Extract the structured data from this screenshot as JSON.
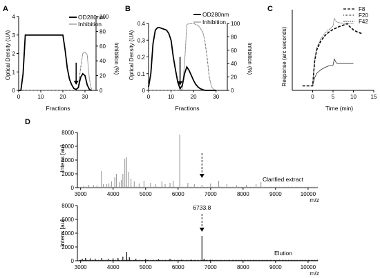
{
  "panels": {
    "A": {
      "label": "A"
    },
    "B": {
      "label": "B"
    },
    "C": {
      "label": "C"
    },
    "D": {
      "label": "D"
    }
  },
  "chart_data": [
    {
      "id": "A",
      "type": "line",
      "xlabel": "Fractions",
      "ylabel": "Optical Density (UA)",
      "y2label": "Inhibition (%)",
      "xlim": [
        0,
        35
      ],
      "ylim": [
        0,
        4
      ],
      "y2lim": [
        0,
        100
      ],
      "xticks": [
        0,
        10,
        20,
        30
      ],
      "yticks": [
        0,
        1,
        2,
        3,
        4
      ],
      "y2ticks": [
        0,
        20,
        40,
        60,
        80,
        100
      ],
      "legend": [
        "OD280nm",
        "Inhibition"
      ],
      "legend_position": "top-right",
      "series": [
        {
          "name": "OD280nm",
          "axis": "left",
          "x": [
            0,
            1,
            2,
            3,
            4,
            10,
            15,
            20,
            21,
            22,
            23,
            24,
            25,
            26,
            27,
            28,
            29,
            30,
            31,
            32,
            33
          ],
          "y": [
            0,
            0,
            0.9,
            3,
            3,
            3,
            3,
            3,
            2.2,
            1.2,
            0.6,
            0.3,
            0.1,
            0.05,
            0.15,
            0.7,
            0.9,
            0.8,
            0.3,
            0.05,
            0
          ]
        },
        {
          "name": "Inhibition",
          "axis": "right",
          "x": [
            0,
            26,
            27,
            28,
            29,
            30,
            31,
            32,
            33
          ],
          "y": [
            0,
            0,
            5,
            30,
            50,
            52,
            48,
            15,
            0
          ]
        }
      ],
      "annotations": [
        {
          "type": "arrow",
          "x": 26,
          "y_from": 1.5,
          "y_to": 0.3
        }
      ]
    },
    {
      "id": "B",
      "type": "line",
      "xlabel": "Fractions",
      "ylabel": "Optical Density (UA)",
      "y2label": "Inhibition (%)",
      "xlim": [
        0,
        35
      ],
      "ylim": [
        0,
        0.4
      ],
      "y2lim": [
        0,
        100
      ],
      "xticks": [
        0,
        10,
        20,
        30
      ],
      "yticks": [
        0,
        0.1,
        0.2,
        0.3,
        0.4
      ],
      "ytick_labels": [
        "0",
        "0.1",
        "0.2",
        "0.3",
        "0.4"
      ],
      "y2ticks": [
        0,
        20,
        40,
        60,
        80,
        100
      ],
      "legend": [
        "OD280nm",
        "Inhibition"
      ],
      "legend_position": "top-right",
      "series": [
        {
          "name": "OD280nm",
          "axis": "left",
          "x": [
            0,
            1,
            2,
            3,
            4,
            5,
            6,
            7,
            8,
            9,
            10,
            11,
            12,
            13,
            14,
            15,
            16,
            17,
            18,
            19,
            20,
            21,
            22,
            23,
            24,
            25,
            26,
            27,
            28,
            29,
            30
          ],
          "y": [
            0.02,
            0.1,
            0.28,
            0.36,
            0.375,
            0.375,
            0.37,
            0.365,
            0.36,
            0.34,
            0.3,
            0.2,
            0.12,
            0.05,
            0.01,
            0.03,
            0.1,
            0.14,
            0.12,
            0.09,
            0.06,
            0.035,
            0.02,
            0.01,
            0.005,
            0,
            0,
            0,
            0,
            0,
            0
          ]
        },
        {
          "name": "Inhibition",
          "axis": "right",
          "x": [
            0,
            14,
            15,
            16,
            17,
            18,
            20,
            22,
            24,
            25,
            26,
            27,
            28,
            29,
            30
          ],
          "y": [
            0,
            0,
            2,
            40,
            98,
            100,
            100,
            97,
            88,
            75,
            50,
            20,
            5,
            1,
            0
          ]
        }
      ],
      "annotations": [
        {
          "type": "arrow",
          "x": 14,
          "y_from": 0.2,
          "y_to": 0.03
        }
      ]
    },
    {
      "id": "C",
      "type": "line",
      "xlabel": "Time (min)",
      "ylabel": "Response (arc seconds)",
      "xlim": [
        -5,
        15
      ],
      "xticks": [
        0,
        5,
        10,
        15
      ],
      "ylim": [
        -10,
        170
      ],
      "legend": [
        "F8",
        "F20",
        "F42"
      ],
      "legend_position": "top-right",
      "series": [
        {
          "name": "F8",
          "x": [
            -2.5,
            0,
            0.5,
            1,
            2,
            3,
            4,
            5,
            6,
            7,
            8,
            8.5,
            9,
            10,
            11,
            12
          ],
          "y": [
            0,
            0,
            55,
            80,
            100,
            112,
            120,
            126,
            130,
            134,
            137,
            139,
            133,
            125,
            120,
            117
          ]
        },
        {
          "name": "F20",
          "x": [
            0,
            0.5,
            1,
            2,
            3,
            4,
            5,
            5.3,
            5.7,
            6,
            7,
            8,
            9,
            10
          ],
          "y": [
            0,
            60,
            85,
            105,
            118,
            126,
            133,
            150,
            145,
            142,
            140,
            139,
            139,
            139
          ]
        },
        {
          "name": "F42",
          "x": [
            0,
            0.5,
            1,
            2,
            3,
            4,
            5,
            5.3,
            5.7,
            6,
            7,
            8,
            9,
            10
          ],
          "y": [
            0,
            18,
            28,
            36,
            41,
            45,
            46,
            60,
            53,
            50,
            50,
            50,
            50,
            50
          ]
        }
      ]
    },
    {
      "id": "D1",
      "type": "line",
      "xlabel": "m/z",
      "ylabel": "Intens [au]",
      "xlim": [
        2900,
        10300
      ],
      "xticks": [
        3000,
        4000,
        5000,
        6000,
        7000,
        8000,
        9000,
        10000
      ],
      "ylim": [
        0,
        8000
      ],
      "yticks": [
        0,
        2000,
        4000,
        6000,
        8000
      ],
      "annotations": [
        {
          "type": "text",
          "text": "Clarified extract",
          "position": "right"
        },
        {
          "type": "dashed-arrow",
          "x": 6734
        }
      ],
      "peaks": {
        "x": [
          3100,
          3250,
          3400,
          3500,
          3640,
          3700,
          3800,
          3870,
          3950,
          4050,
          4100,
          4200,
          4250,
          4300,
          4360,
          4420,
          4480,
          4550,
          4650,
          4800,
          4950,
          5150,
          5300,
          5500,
          5600,
          5750,
          5850,
          6050,
          6300,
          6500,
          6734,
          7000,
          7250,
          7500,
          7800,
          8100,
          8400,
          8550
        ],
        "y": [
          300,
          400,
          350,
          300,
          2400,
          500,
          500,
          600,
          900,
          1500,
          2000,
          800,
          1100,
          2000,
          4200,
          4400,
          2300,
          1300,
          900,
          600,
          1000,
          700,
          500,
          900,
          500,
          700,
          1000,
          7700,
          700,
          500,
          400,
          600,
          1000,
          500,
          350,
          400,
          500,
          800
        ]
      }
    },
    {
      "id": "D2",
      "type": "line",
      "xlabel": "m/z",
      "ylabel": "Intens [au]",
      "xlim": [
        2900,
        10300
      ],
      "xticks": [
        3000,
        4000,
        5000,
        6000,
        7000,
        8000,
        9000,
        10000
      ],
      "ylim": [
        0,
        8000
      ],
      "yticks": [
        0,
        2000,
        4000,
        6000,
        8000
      ],
      "annotations": [
        {
          "type": "text",
          "text": "Elution",
          "position": "right"
        },
        {
          "type": "text",
          "text": "6733.8",
          "x": 6734
        },
        {
          "type": "dashed-arrow",
          "x": 6734
        }
      ],
      "peaks": {
        "x": [
          3050,
          3150,
          3300,
          3450,
          3650,
          3850,
          4000,
          4150,
          4300,
          4420,
          4500,
          4700,
          5000,
          5400,
          5750,
          6100,
          6400,
          6734,
          6800,
          7000
        ],
        "y": [
          300,
          400,
          350,
          300,
          400,
          300,
          350,
          400,
          600,
          1300,
          500,
          300,
          250,
          200,
          300,
          150,
          150,
          3600,
          300,
          150
        ]
      }
    }
  ]
}
